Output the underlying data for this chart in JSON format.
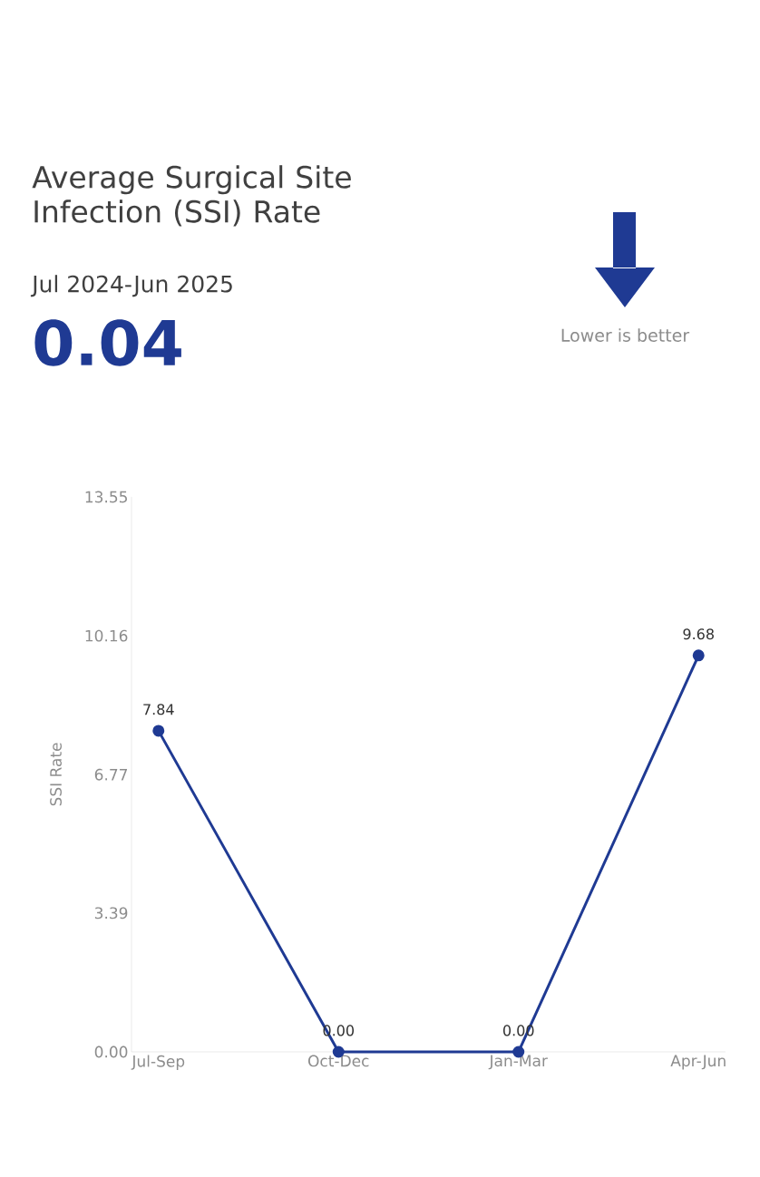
{
  "chart_data": {
    "type": "line",
    "title": "Average Surgical Site Infection (SSI) Rate",
    "subtitle": "Jul 2024-Jun 2025",
    "ylabel": "SSI Rate",
    "annotations": [
      "0.04",
      "Lower is better"
    ],
    "categories": [
      "Jul-Sep",
      "Oct-Dec",
      "Jan-Mar",
      "Apr-Jun"
    ],
    "series": [
      {
        "color": "#1f3a93",
        "values": [
          7.84,
          0,
          0,
          9.68
        ],
        "value_labels": [
          "7.84",
          "0.00",
          "0.00",
          "9.68"
        ]
      }
    ],
    "ylim": [
      0,
      13.55
    ],
    "yticks": [
      {
        "value": 0,
        "label": "0.00"
      },
      3.39,
      6.77,
      10.16,
      13.55
    ],
    "marker": "circle",
    "line_style": "solid"
  }
}
